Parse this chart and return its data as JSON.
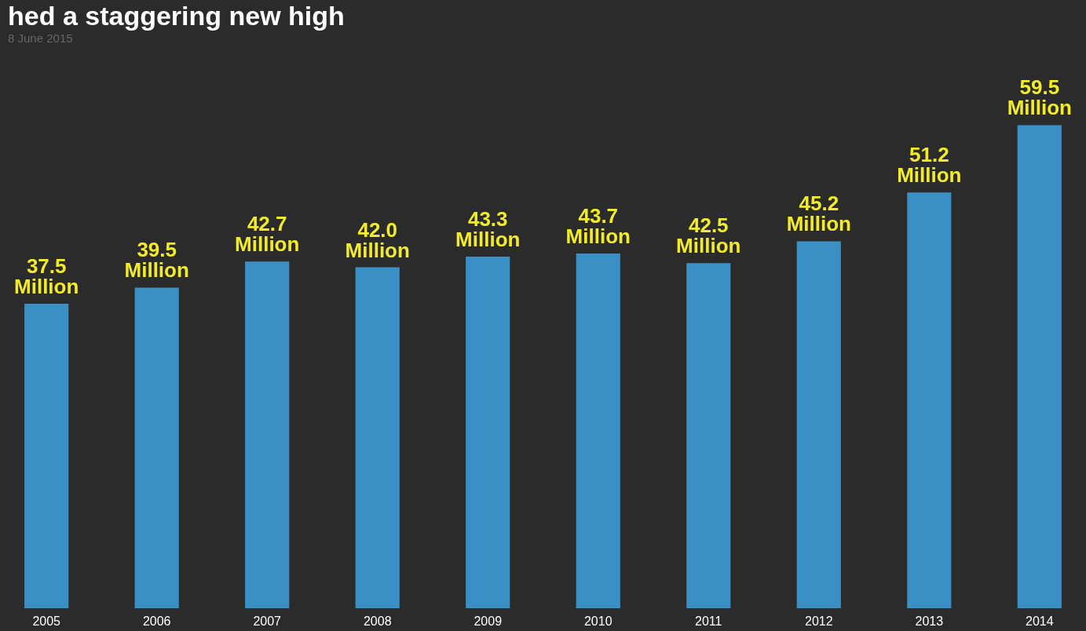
{
  "chart_data": {
    "type": "bar",
    "title": "hed a staggering new high",
    "subtitle": "8 June 2015",
    "categories": [
      "2005",
      "2006",
      "2007",
      "2008",
      "2009",
      "2010",
      "2011",
      "2012",
      "2013",
      "2014"
    ],
    "values": [
      37.5,
      39.5,
      42.7,
      42.0,
      43.3,
      43.7,
      42.5,
      45.2,
      51.2,
      59.5
    ],
    "value_labels": [
      "37.5\nMillion",
      "39.5\nMillion",
      "42.7\nMillion",
      "42.0\nMillion",
      "43.3\nMillion",
      "43.7\nMillion",
      "42.5\nMillion",
      "45.2\nMillion",
      "51.2\nMillion",
      "59.5\nMillion"
    ],
    "color": "#3a8fc4"
  }
}
